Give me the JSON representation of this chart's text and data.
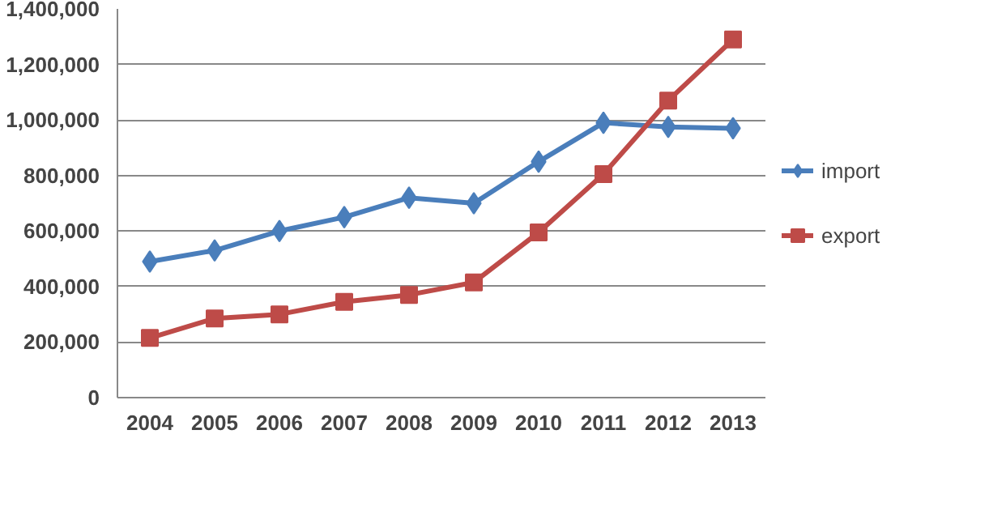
{
  "chart_data": {
    "type": "line",
    "categories": [
      "2004",
      "2005",
      "2006",
      "2007",
      "2008",
      "2009",
      "2010",
      "2011",
      "2012",
      "2013"
    ],
    "series": [
      {
        "name": "import",
        "color": "#4a7ebb",
        "marker": "diamond",
        "values": [
          490000,
          530000,
          600000,
          650000,
          720000,
          700000,
          850000,
          990000,
          975000,
          970000
        ]
      },
      {
        "name": "export",
        "color": "#be4b48",
        "marker": "square",
        "values": [
          215000,
          285000,
          300000,
          345000,
          370000,
          415000,
          595000,
          805000,
          1070000,
          1290000
        ]
      }
    ],
    "ylim": [
      0,
      1400000
    ],
    "yticks": [
      {
        "value": 0,
        "label": "0"
      },
      {
        "value": 200000,
        "label": "200,000"
      },
      {
        "value": 400000,
        "label": "400,000"
      },
      {
        "value": 600000,
        "label": "600,000"
      },
      {
        "value": 800000,
        "label": "800,000"
      },
      {
        "value": 1000000,
        "label": "1,000,000"
      },
      {
        "value": 1200000,
        "label": "1,200,000"
      },
      {
        "value": 1400000,
        "label": "1,400,000"
      }
    ],
    "grid": "y",
    "legend": "right",
    "line_style": "solid"
  }
}
